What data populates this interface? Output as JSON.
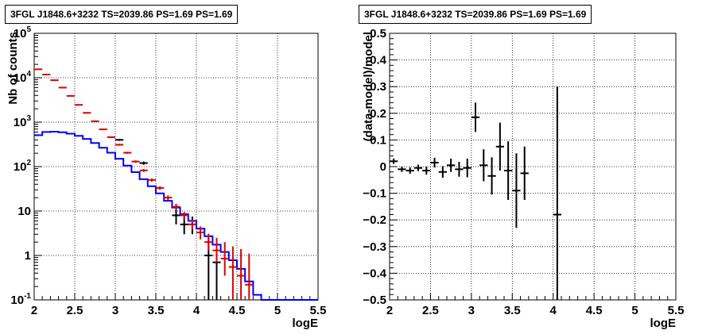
{
  "panels": {
    "left": {
      "title": "3FGL J1848.6+3232 TS=2039.86 PS=1.69 PS=1.69"
    },
    "right": {
      "title": "3FGL J1848.6+3232 TS=2039.86 PS=1.69 PS=1.69"
    }
  },
  "colors": {
    "data": "#000000",
    "model_total": "#0000ff",
    "model_points": "#dd0000",
    "grid": "#000000"
  },
  "chart_data": [
    {
      "type": "scatter",
      "panel": "left",
      "xlabel": "logE",
      "ylabel": "Nb of counts",
      "xlim": [
        2,
        5.5
      ],
      "ylim": [
        0.1,
        100000
      ],
      "yscale": "log",
      "grid": true,
      "x_ticks": [
        "2",
        "2.5",
        "3",
        "3.5",
        "4",
        "4.5",
        "5",
        "5.5"
      ],
      "y_ticks": [
        "10^-1",
        "1",
        "10",
        "10^2",
        "10^3",
        "10^4",
        "10^5"
      ],
      "bin_edges": [
        2.0,
        2.1,
        2.2,
        2.3,
        2.4,
        2.5,
        2.6,
        2.7,
        2.8,
        2.9,
        3.0,
        3.1,
        3.2,
        3.3,
        3.4,
        3.5,
        3.6,
        3.7,
        3.8,
        3.9,
        4.0,
        4.1,
        4.2,
        4.3,
        4.4,
        4.5,
        4.6,
        4.7,
        4.8,
        4.9,
        5.0,
        5.1,
        5.2,
        5.3,
        5.4,
        5.5
      ],
      "series": [
        {
          "role": "model_total_step",
          "values": [
            510,
            600,
            610,
            590,
            550,
            490,
            420,
            340,
            265,
            205,
            150,
            105,
            75,
            52,
            36,
            25,
            17,
            12,
            8.5,
            6,
            4,
            2.7,
            1.75,
            1.2,
            0.78,
            0.5,
            0.26,
            0.13,
            0.1,
            0.1,
            0.1,
            0.1,
            0.1,
            0.1,
            0.1
          ]
        },
        {
          "role": "model_points",
          "x": [
            2.05,
            2.15,
            2.25,
            2.35,
            2.45,
            2.55,
            2.65,
            2.75,
            2.85,
            2.95,
            3.05,
            3.15,
            3.25,
            3.35,
            3.45,
            3.55,
            3.65,
            3.75,
            3.85,
            3.95,
            4.05,
            4.15,
            4.25,
            4.35,
            4.45,
            4.55,
            4.65
          ],
          "y": [
            15500,
            11800,
            8800,
            6000,
            3900,
            2450,
            1620,
            1050,
            690,
            460,
            310,
            205,
            130,
            82,
            50,
            33,
            20,
            12.5,
            8,
            5,
            3.3,
            2,
            1.3,
            0.85,
            0.55,
            0.35,
            0.22
          ],
          "err_low": [
            15100,
            11500,
            8600,
            5850,
            3790,
            2370,
            1560,
            1010,
            660,
            440,
            295,
            194,
            122,
            76,
            46,
            30,
            17.5,
            10.5,
            6.5,
            3.8,
            2.3,
            1.3,
            0.7,
            0.35,
            0.1,
            0.1,
            0.1
          ],
          "err_high": [
            15900,
            12100,
            9000,
            6150,
            4010,
            2530,
            1680,
            1090,
            720,
            480,
            325,
            216,
            138,
            88,
            54,
            36,
            22.5,
            14.5,
            9.5,
            6.5,
            4.5,
            3.1,
            2.5,
            2,
            1.6,
            1.4,
            1.1
          ]
        },
        {
          "role": "data",
          "x": [
            3.05,
            3.35,
            3.75,
            3.85,
            3.95,
            4.15,
            4.25
          ],
          "y": [
            400,
            120,
            8,
            5,
            5,
            1,
            0.7
          ],
          "err_low": [
            380,
            110,
            5,
            3,
            3,
            0.1,
            0.1
          ],
          "err_high": [
            420,
            130,
            11,
            7.5,
            7.5,
            2.5,
            1.8
          ]
        }
      ]
    },
    {
      "type": "scatter",
      "panel": "right",
      "xlabel": "logE",
      "ylabel": "(data-model)/model",
      "xlim": [
        2,
        5.5
      ],
      "ylim": [
        -0.5,
        0.5
      ],
      "grid": true,
      "x_ticks": [
        "2",
        "2.5",
        "3",
        "3.5",
        "4",
        "4.5",
        "5",
        "5.5"
      ],
      "y_ticks": [
        "−0.5",
        "−0.4",
        "−0.3",
        "−0.2",
        "−0.1",
        "0",
        "0.1",
        "0.2",
        "0.3",
        "0.4",
        "0.5"
      ],
      "series": [
        {
          "role": "residuals",
          "x": [
            2.05,
            2.15,
            2.25,
            2.35,
            2.45,
            2.55,
            2.65,
            2.75,
            2.85,
            2.95,
            3.05,
            3.15,
            3.25,
            3.35,
            3.45,
            3.55,
            3.65,
            4.05
          ],
          "y": [
            0.02,
            -0.01,
            -0.015,
            -0.005,
            -0.015,
            0.015,
            -0.02,
            0.005,
            -0.01,
            -0.005,
            0.185,
            0.005,
            -0.035,
            0.075,
            -0.015,
            -0.09,
            -0.025,
            -0.18
          ],
          "err": [
            0.01,
            0.01,
            0.012,
            0.012,
            0.015,
            0.018,
            0.022,
            0.025,
            0.028,
            0.035,
            0.055,
            0.06,
            0.07,
            0.09,
            0.11,
            0.14,
            0.1,
            0.48
          ]
        }
      ]
    }
  ]
}
